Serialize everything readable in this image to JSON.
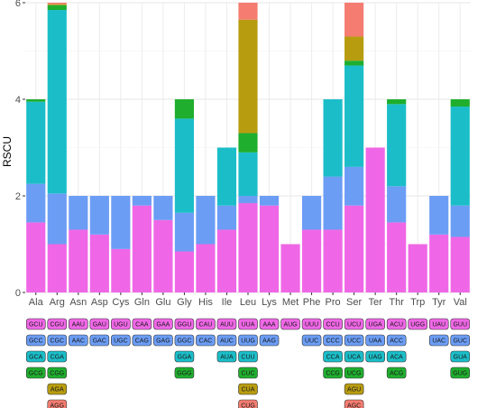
{
  "chart_data": {
    "type": "bar",
    "stacked": true,
    "ylabel": "RSCU",
    "xlabel": "",
    "ylim": [
      0,
      6
    ],
    "yticks": [
      0,
      2,
      4,
      6
    ],
    "grid": true,
    "legend": "codon table below the x axis",
    "categories": [
      "Ala",
      "Arg",
      "Asn",
      "Asp",
      "Cys",
      "Gln",
      "Glu",
      "Gly",
      "His",
      "Ile",
      "Leu",
      "Lys",
      "Met",
      "Phe",
      "Pro",
      "Ser",
      "Ter",
      "Thr",
      "Trp",
      "Tyr",
      "Val"
    ],
    "level_colors": [
      "#ef67e6",
      "#6b9df5",
      "#1bbec8",
      "#1fae2e",
      "#b89c10",
      "#f47c71"
    ],
    "stacks": [
      [
        1.45,
        0.8,
        1.7,
        0.05
      ],
      [
        1.0,
        1.05,
        3.8,
        0.1,
        0.02,
        0.03
      ],
      [
        1.3,
        0.7
      ],
      [
        1.2,
        0.8
      ],
      [
        0.9,
        1.1
      ],
      [
        1.8,
        0.2
      ],
      [
        1.5,
        0.5
      ],
      [
        0.85,
        0.8,
        1.95,
        0.4
      ],
      [
        1.0,
        1.0
      ],
      [
        1.3,
        0.5,
        1.2
      ],
      [
        1.85,
        0.15,
        0.9,
        0.4,
        2.35,
        0.35
      ],
      [
        1.8,
        0.2
      ],
      [
        1.0
      ],
      [
        1.3,
        0.7
      ],
      [
        1.3,
        1.1,
        1.6
      ],
      [
        1.8,
        0.8,
        2.1,
        0.1,
        0.5,
        0.7
      ],
      [
        3.0
      ],
      [
        1.45,
        0.75,
        1.7,
        0.1
      ],
      [
        1.0
      ],
      [
        1.2,
        0.8
      ],
      [
        1.15,
        0.65,
        2.05,
        0.15
      ]
    ],
    "codons": [
      [
        "GCU",
        "GCC",
        "GCA",
        "GCG"
      ],
      [
        "CGU",
        "CGC",
        "CGA",
        "CGG",
        "AGA",
        "AGG"
      ],
      [
        "AAU",
        "AAC"
      ],
      [
        "GAU",
        "GAC"
      ],
      [
        "UGU",
        "UGC"
      ],
      [
        "CAA",
        "CAG"
      ],
      [
        "GAA",
        "GAG"
      ],
      [
        "GGU",
        "GGC",
        "GGA",
        "GGG"
      ],
      [
        "CAU",
        "CAC"
      ],
      [
        "AUU",
        "AUC",
        "AUA"
      ],
      [
        "UUA",
        "UUG",
        "CUU",
        "CUC",
        "CUA",
        "CUG"
      ],
      [
        "AAA",
        "AAG"
      ],
      [
        "AUG"
      ],
      [
        "UUU",
        "UUC"
      ],
      [
        "CCU",
        "CCC",
        "CCA",
        "CCG"
      ],
      [
        "UCU",
        "UCC",
        "UCA",
        "UCG",
        "AGU",
        "AGC"
      ],
      [
        "UGA",
        "UAA",
        "UAG"
      ],
      [
        "ACU",
        "ACC",
        "ACA",
        "ACG"
      ],
      [
        "UGG"
      ],
      [
        "UAU",
        "UAC"
      ],
      [
        "GUU",
        "GUC",
        "GUA",
        "GUG"
      ]
    ],
    "codon_columns": [
      [
        1,
        2,
        3,
        4
      ],
      [
        1,
        2,
        3,
        4,
        5,
        6
      ],
      [
        1,
        2
      ],
      [
        1,
        2
      ],
      [
        1,
        2
      ],
      [
        1,
        2
      ],
      [
        1,
        2
      ],
      [
        1,
        2,
        3,
        4
      ],
      [
        1,
        2
      ],
      [
        1,
        2,
        3
      ],
      [
        1,
        2,
        3,
        4,
        5,
        6
      ],
      [
        1,
        2
      ],
      [
        1
      ],
      [
        1,
        2
      ],
      [
        1,
        2,
        3,
        4
      ],
      [
        1,
        2,
        3,
        4,
        5,
        6
      ],
      [
        1,
        2,
        3
      ],
      [
        1,
        2,
        3,
        4
      ],
      [
        1
      ],
      [
        1,
        2
      ],
      [
        1,
        2,
        3,
        4
      ]
    ]
  }
}
